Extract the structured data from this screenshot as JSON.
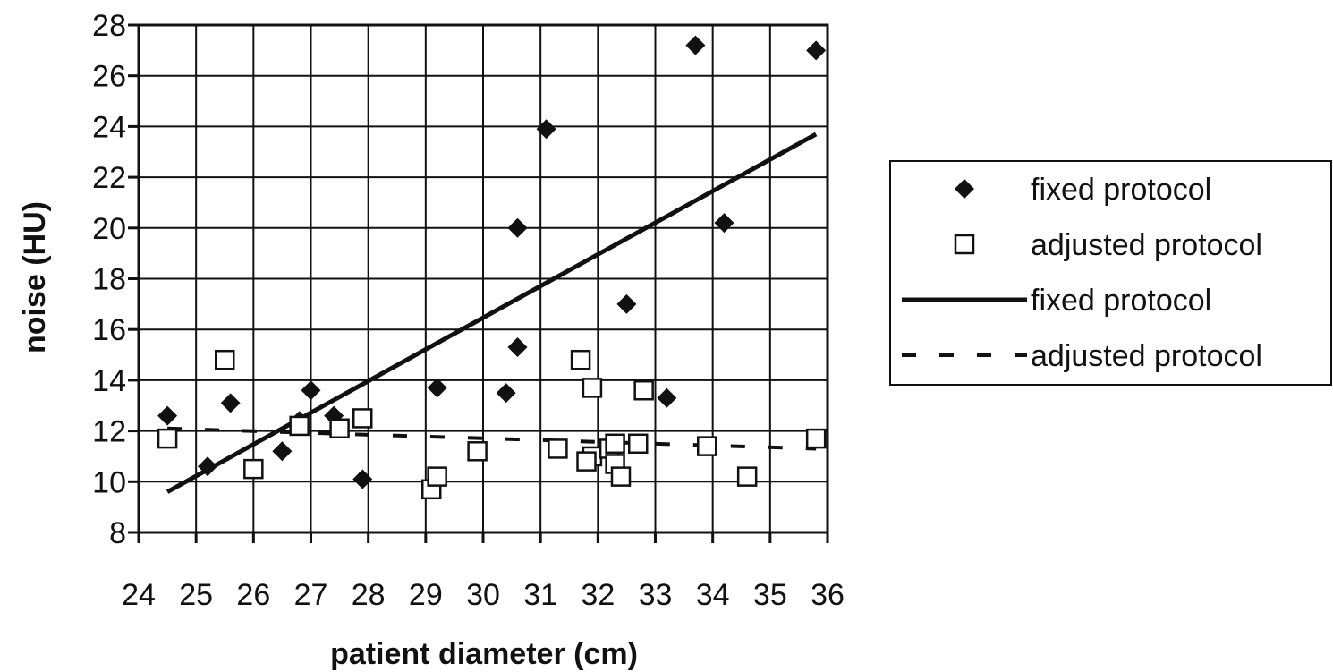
{
  "chart_data": {
    "type": "scatter",
    "title": "",
    "xlabel": "patient diameter (cm)",
    "ylabel": "noise (HU)",
    "xlim": [
      24,
      36
    ],
    "ylim": [
      8,
      28
    ],
    "x_ticks": [
      "24",
      "25",
      "26",
      "27",
      "28",
      "29",
      "30",
      "31",
      "32",
      "33",
      "34",
      "35",
      "36"
    ],
    "y_ticks": [
      "8",
      "10",
      "12",
      "14",
      "16",
      "18",
      "20",
      "22",
      "24",
      "26",
      "28"
    ],
    "grid": true,
    "legend_position": "right",
    "series": [
      {
        "name": "fixed protocol",
        "kind": "points",
        "marker": "diamond-filled",
        "color": "#111111",
        "points": [
          [
            24.5,
            12.6
          ],
          [
            25.2,
            10.6
          ],
          [
            25.6,
            13.1
          ],
          [
            26.5,
            11.2
          ],
          [
            26.8,
            12.4
          ],
          [
            27.0,
            13.6
          ],
          [
            27.4,
            12.6
          ],
          [
            27.9,
            10.1
          ],
          [
            29.2,
            13.7
          ],
          [
            30.4,
            13.5
          ],
          [
            30.6,
            15.3
          ],
          [
            30.6,
            20.0
          ],
          [
            31.1,
            23.9
          ],
          [
            32.5,
            17.0
          ],
          [
            33.2,
            13.3
          ],
          [
            33.7,
            27.2
          ],
          [
            34.2,
            20.2
          ],
          [
            35.8,
            27.0
          ]
        ]
      },
      {
        "name": "adjusted protocol",
        "kind": "points",
        "marker": "square-open",
        "color": "#111111",
        "points": [
          [
            24.5,
            11.7
          ],
          [
            25.5,
            14.8
          ],
          [
            26.0,
            10.5
          ],
          [
            26.8,
            12.2
          ],
          [
            27.5,
            12.1
          ],
          [
            27.9,
            12.5
          ],
          [
            29.1,
            9.7
          ],
          [
            29.2,
            10.2
          ],
          [
            29.9,
            11.2
          ],
          [
            31.3,
            11.3
          ],
          [
            31.7,
            14.8
          ],
          [
            31.9,
            13.7
          ],
          [
            31.9,
            11.0
          ],
          [
            31.8,
            10.8
          ],
          [
            32.2,
            11.3
          ],
          [
            32.3,
            11.5
          ],
          [
            32.3,
            10.7
          ],
          [
            32.4,
            10.2
          ],
          [
            32.7,
            11.5
          ],
          [
            32.8,
            13.6
          ],
          [
            33.9,
            11.4
          ],
          [
            34.6,
            10.2
          ],
          [
            35.8,
            11.7
          ]
        ]
      },
      {
        "name": "fixed protocol",
        "kind": "line",
        "style": "solid",
        "color": "#111111",
        "points": [
          [
            24.5,
            9.6
          ],
          [
            35.8,
            23.7
          ]
        ]
      },
      {
        "name": "adjusted protocol",
        "kind": "line",
        "style": "dashed",
        "color": "#111111",
        "points": [
          [
            24.5,
            12.1
          ],
          [
            35.8,
            11.3
          ]
        ]
      }
    ]
  }
}
